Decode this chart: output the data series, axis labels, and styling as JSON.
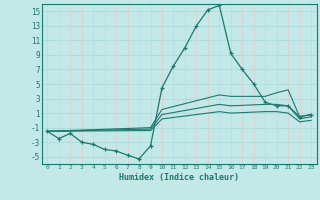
{
  "xlabel": "Humidex (Indice chaleur)",
  "bg_color": "#c2e8e8",
  "grid_color": "#add8d8",
  "line_color": "#1a7a6e",
  "x_min": -0.5,
  "x_max": 23.5,
  "y_min": -6,
  "y_max": 16,
  "yticks": [
    -5,
    -3,
    -1,
    1,
    3,
    5,
    7,
    9,
    11,
    13,
    15
  ],
  "xticks": [
    0,
    1,
    2,
    3,
    4,
    5,
    6,
    7,
    8,
    9,
    10,
    11,
    12,
    13,
    14,
    15,
    16,
    17,
    18,
    19,
    20,
    21,
    22,
    23
  ],
  "series": [
    {
      "x": [
        0,
        1,
        2,
        3,
        4,
        5,
        6,
        7,
        8,
        9,
        10,
        11,
        12,
        13,
        14,
        15,
        16,
        17,
        18,
        19,
        20,
        21,
        22,
        23
      ],
      "y": [
        -1.5,
        -2.5,
        -1.8,
        -3.0,
        -3.3,
        -4.0,
        -4.2,
        -4.8,
        -5.3,
        -3.5,
        4.5,
        7.5,
        10.0,
        13.0,
        15.2,
        15.8,
        9.2,
        7.0,
        5.0,
        2.5,
        2.0,
        2.0,
        0.5,
        0.8
      ],
      "marker": true
    },
    {
      "x": [
        0,
        9,
        10,
        15,
        16,
        19,
        20,
        21,
        22,
        23
      ],
      "y": [
        -1.5,
        -1.0,
        1.5,
        3.5,
        3.3,
        3.3,
        3.8,
        4.2,
        0.5,
        0.8
      ],
      "marker": false
    },
    {
      "x": [
        0,
        9,
        10,
        15,
        16,
        19,
        20,
        21,
        22,
        23
      ],
      "y": [
        -1.5,
        -1.2,
        0.8,
        2.2,
        2.0,
        2.2,
        2.2,
        2.0,
        0.2,
        0.5
      ],
      "marker": false
    },
    {
      "x": [
        0,
        9,
        10,
        15,
        16,
        19,
        20,
        21,
        22,
        23
      ],
      "y": [
        -1.5,
        -1.4,
        0.2,
        1.2,
        1.0,
        1.2,
        1.2,
        1.0,
        -0.2,
        0.0
      ],
      "marker": false
    }
  ]
}
